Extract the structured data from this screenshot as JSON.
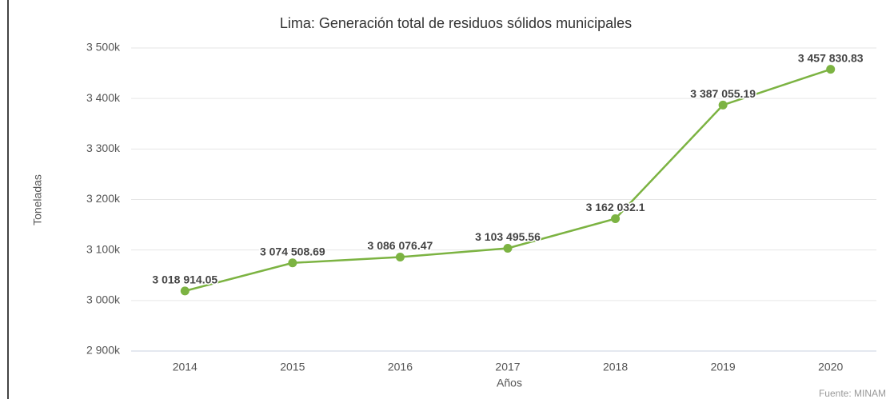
{
  "chart_data": {
    "type": "line",
    "title": "Lima: Generación total de residuos sólidos municipales",
    "x_label": "Años",
    "y_label": "Toneladas",
    "source": "Fuente: MINAM",
    "categories": [
      "2014",
      "2015",
      "2016",
      "2017",
      "2018",
      "2019",
      "2020"
    ],
    "series": [
      {
        "name": "Generación total",
        "color": "#7cb342",
        "values": [
          3018914.05,
          3074508.69,
          3086076.47,
          3103495.56,
          3162032.1,
          3387055.19,
          3457830.83
        ],
        "value_labels": [
          "3 018 914.05",
          "3 074 508.69",
          "3 086 076.47",
          "3 103 495.56",
          "3 162 032.1",
          "3 387 055.19",
          "3 457 830.83"
        ]
      }
    ],
    "ylim": [
      2900000,
      3500000
    ],
    "yticks": [
      {
        "value": 2900000,
        "label": "2 900k"
      },
      {
        "value": 3000000,
        "label": "3 000k"
      },
      {
        "value": 3100000,
        "label": "3 100k"
      },
      {
        "value": 3200000,
        "label": "3 200k"
      },
      {
        "value": 3300000,
        "label": "3 300k"
      },
      {
        "value": 3400000,
        "label": "3 400k"
      },
      {
        "value": 3500000,
        "label": "3 500k"
      }
    ],
    "grid": true
  }
}
